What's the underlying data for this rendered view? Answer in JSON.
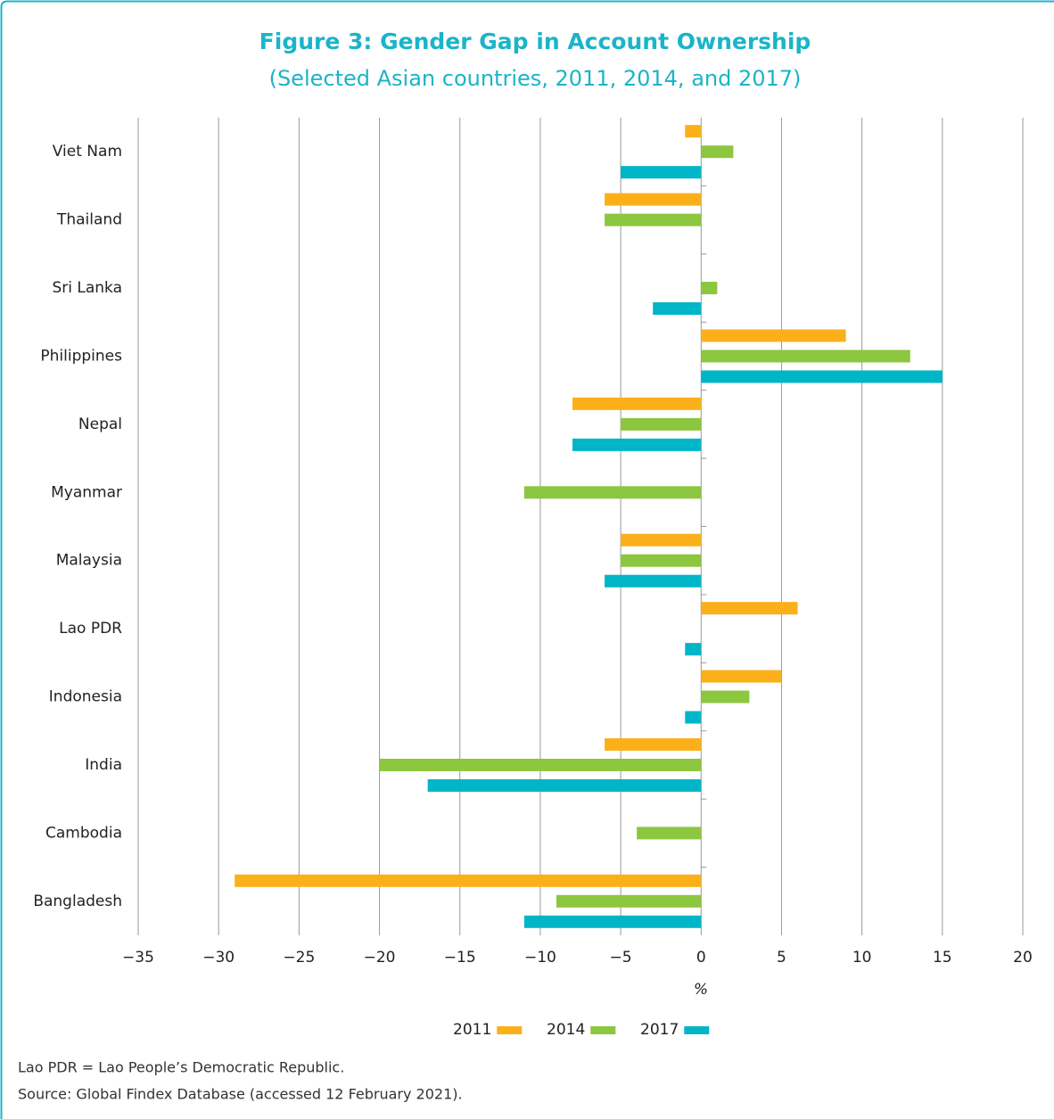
{
  "chart_data": {
    "type": "bar",
    "orientation": "horizontal",
    "title": "Figure 3: Gender Gap in Account Ownership",
    "subtitle": "(Selected Asian countries, 2011, 2014, and 2017)",
    "x_label": "%",
    "categories": [
      "Viet Nam",
      "Thailand",
      "Sri Lanka",
      "Philippines",
      "Nepal",
      "Myanmar",
      "Malaysia",
      "Lao PDR",
      "Indonesia",
      "India",
      "Cambodia",
      "Bangladesh"
    ],
    "series": [
      {
        "name": "2011",
        "color": "#fbb01a",
        "values": [
          -1,
          -6,
          null,
          9,
          -8,
          null,
          -5,
          6,
          5,
          -6,
          null,
          -29
        ]
      },
      {
        "name": "2014",
        "color": "#8dc63f",
        "values": [
          2,
          -6,
          1,
          13,
          -5,
          -11,
          -5,
          null,
          3,
          -20,
          -4,
          -9
        ]
      },
      {
        "name": "2017",
        "color": "#00b5c8",
        "values": [
          -5,
          null,
          -3,
          15,
          -8,
          null,
          -6,
          -1,
          -1,
          -17,
          null,
          -11
        ]
      }
    ],
    "xlim": [
      -35,
      20
    ],
    "xticks": [
      {
        "value": -35,
        "label": "−35"
      },
      {
        "value": -30,
        "label": "−30"
      },
      {
        "value": -25,
        "label": "−25"
      },
      {
        "value": -20,
        "label": "−20"
      },
      {
        "value": -15,
        "label": "−15"
      },
      {
        "value": -10,
        "label": "−10"
      },
      {
        "value": -5,
        "label": "−5"
      },
      0,
      5,
      10,
      15,
      20
    ],
    "grid": true,
    "legend": "bottom",
    "notes": [
      "Lao PDR = Lao People’s Democratic Republic.",
      "Source: Global Findex Database (accessed 12 February 2021)."
    ]
  }
}
